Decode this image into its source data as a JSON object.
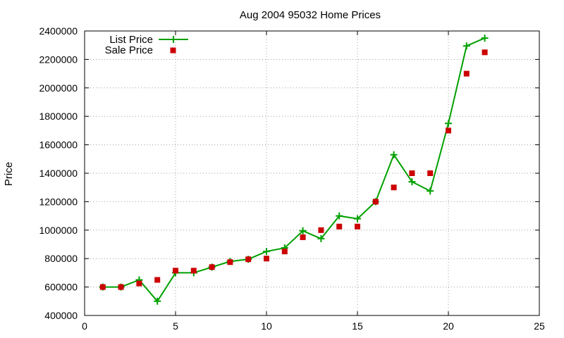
{
  "chart_data": {
    "type": "line",
    "title": "Aug 2004 95032 Home Prices",
    "xlabel": "",
    "ylabel": "Price",
    "xlim": [
      0,
      25
    ],
    "ylim": [
      400000,
      2400000
    ],
    "xticks": [
      0,
      5,
      10,
      15,
      20,
      25
    ],
    "yticks": [
      400000,
      600000,
      800000,
      1000000,
      1200000,
      1400000,
      1600000,
      1800000,
      2000000,
      2200000,
      2400000
    ],
    "xtick_labels": [
      "0",
      "5",
      "10",
      "15",
      "20",
      "25"
    ],
    "ytick_labels": [
      "400000",
      "600000",
      "800000",
      "1000000",
      "1200000",
      "1400000",
      "1600000",
      "1800000",
      "2000000",
      "2200000",
      "2400000"
    ],
    "grid": true,
    "legend_position": "top-left",
    "series": [
      {
        "name": "List Price",
        "style": "linespoints",
        "marker": "plus",
        "color": "#00a000",
        "x": [
          1,
          2,
          3,
          4,
          5,
          6,
          7,
          8,
          9,
          10,
          11,
          12,
          13,
          14,
          15,
          16,
          17,
          18,
          19,
          20,
          21,
          22
        ],
        "y": [
          600000,
          600000,
          650000,
          500000,
          700000,
          700000,
          740000,
          780000,
          795000,
          850000,
          875000,
          995000,
          940000,
          1100000,
          1080000,
          1200000,
          1530000,
          1340000,
          1275000,
          1750000,
          2295000,
          2350000
        ]
      },
      {
        "name": "Sale Price",
        "style": "points",
        "marker": "square",
        "color": "#cc0000",
        "x": [
          1,
          2,
          3,
          4,
          5,
          6,
          7,
          8,
          9,
          10,
          11,
          12,
          13,
          14,
          15,
          16,
          17,
          18,
          19,
          20,
          21,
          22
        ],
        "y": [
          600000,
          600000,
          625000,
          650000,
          715000,
          715000,
          740000,
          775000,
          795000,
          800000,
          850000,
          950000,
          1000000,
          1025000,
          1025000,
          1200000,
          1300000,
          1400000,
          1400000,
          1700000,
          2100000,
          2250000
        ]
      }
    ]
  }
}
